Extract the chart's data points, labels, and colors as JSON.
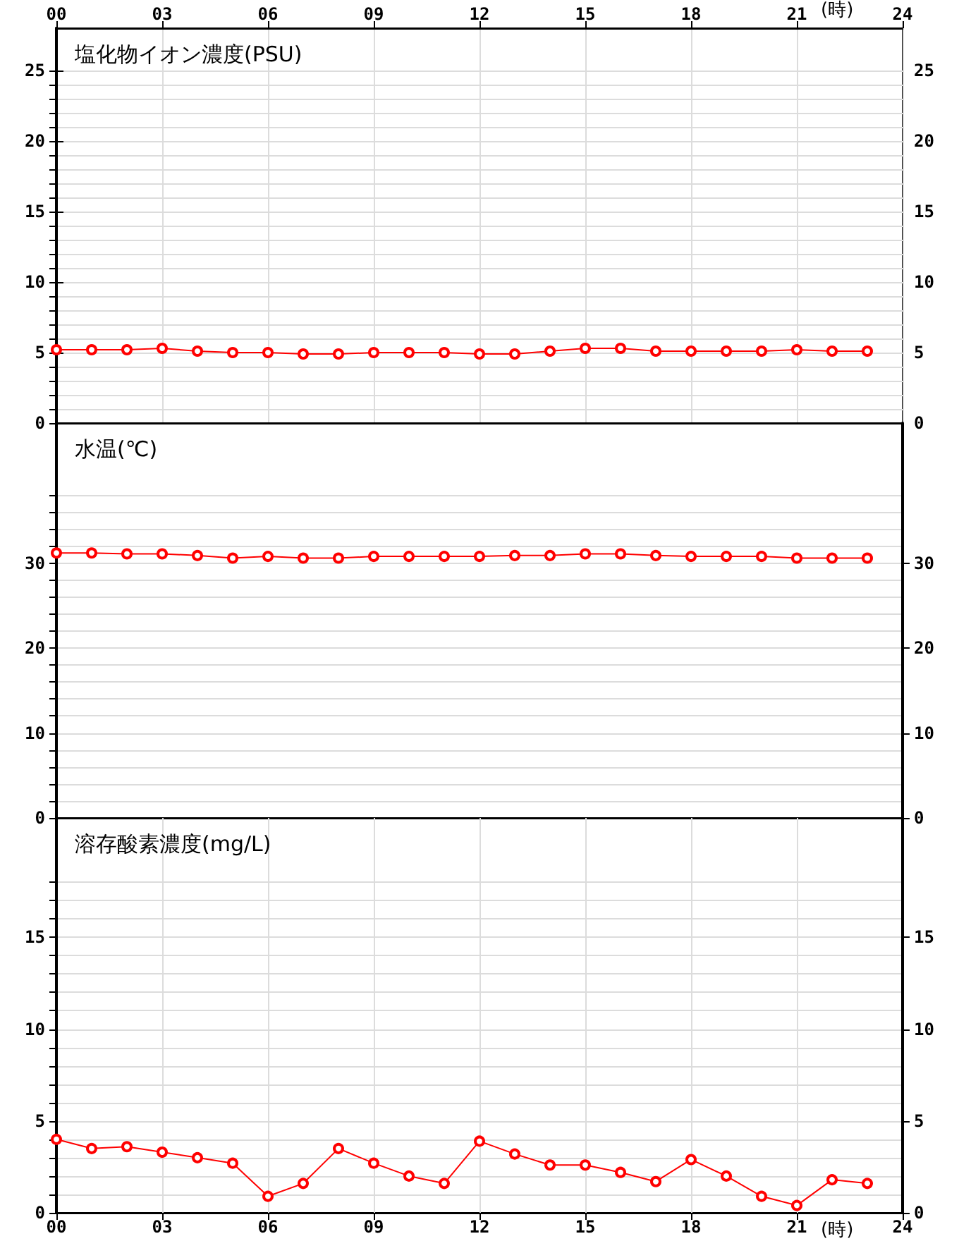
{
  "chart_data": [
    {
      "type": "line",
      "title": "塩化物イオン濃度(PSU)",
      "x": [
        0,
        1,
        2,
        3,
        4,
        5,
        6,
        7,
        8,
        9,
        10,
        11,
        12,
        13,
        14,
        15,
        16,
        17,
        18,
        19,
        20,
        21,
        22,
        23
      ],
      "series": [
        {
          "color": "#ff0000",
          "values": [
            5.2,
            5.2,
            5.2,
            5.3,
            5.1,
            5.0,
            5.0,
            4.9,
            4.9,
            5.0,
            5.0,
            5.0,
            4.9,
            4.9,
            5.1,
            5.3,
            5.3,
            5.1,
            5.1,
            5.1,
            5.1,
            5.2,
            5.1,
            5.1
          ]
        }
      ],
      "xlim": [
        0,
        24
      ],
      "x2lim": [
        0,
        24
      ],
      "x2ticks": [
        {
          "value": 0,
          "label": "00"
        },
        {
          "value": 3,
          "label": "03"
        },
        {
          "value": 6,
          "label": "06"
        },
        {
          "value": 9,
          "label": "09"
        },
        12,
        15,
        18,
        21,
        24
      ],
      "x2label": "(時)",
      "ylim": [
        0,
        28
      ],
      "yticks": [
        0,
        {
          "value": 1,
          "label": null
        },
        {
          "value": 2,
          "label": null
        },
        {
          "value": 3,
          "label": null
        },
        {
          "value": 4,
          "label": null
        },
        5,
        {
          "value": 6,
          "label": null
        },
        {
          "value": 7,
          "label": null
        },
        {
          "value": 8,
          "label": null
        },
        {
          "value": 9,
          "label": null
        },
        10,
        {
          "value": 11,
          "label": null
        },
        {
          "value": 12,
          "label": null
        },
        {
          "value": 13,
          "label": null
        },
        {
          "value": 14,
          "label": null
        },
        15,
        {
          "value": 16,
          "label": null
        },
        {
          "value": 17,
          "label": null
        },
        {
          "value": 18,
          "label": null
        },
        {
          "value": 19,
          "label": null
        },
        20,
        {
          "value": 21,
          "label": null
        },
        {
          "value": 22,
          "label": null
        },
        {
          "value": 23,
          "label": null
        },
        {
          "value": 24,
          "label": null
        },
        25
      ],
      "y2lim": [
        0,
        28
      ],
      "y2ticks": [
        0,
        5,
        10,
        15,
        20,
        25
      ],
      "grid": true,
      "marker": "circle",
      "line_style": "solid"
    },
    {
      "type": "line",
      "title": "水温(℃)",
      "x": [
        0,
        1,
        2,
        3,
        4,
        5,
        6,
        7,
        8,
        9,
        10,
        11,
        12,
        13,
        14,
        15,
        16,
        17,
        18,
        19,
        20,
        21,
        22,
        23
      ],
      "series": [
        {
          "color": "#ff0000",
          "values": [
            31.2,
            31.2,
            31.1,
            31.1,
            30.9,
            30.6,
            30.8,
            30.6,
            30.6,
            30.8,
            30.8,
            30.8,
            30.8,
            30.9,
            30.9,
            31.1,
            31.1,
            30.9,
            30.8,
            30.8,
            30.8,
            30.6,
            30.6,
            30.6
          ]
        }
      ],
      "xlim": [
        0,
        24
      ],
      "tick_labels": "y",
      "ylim": [
        0,
        46.5
      ],
      "yticks": [
        0,
        {
          "value": 2,
          "label": null
        },
        {
          "value": 4,
          "label": null
        },
        {
          "value": 6,
          "label": null
        },
        {
          "value": 8,
          "label": null
        },
        10,
        {
          "value": 12,
          "label": null
        },
        {
          "value": 14,
          "label": null
        },
        {
          "value": 16,
          "label": null
        },
        {
          "value": 18,
          "label": null
        },
        20,
        {
          "value": 22,
          "label": null
        },
        {
          "value": 24,
          "label": null
        },
        {
          "value": 26,
          "label": null
        },
        {
          "value": 28,
          "label": null
        },
        30,
        {
          "value": 32,
          "label": null
        },
        {
          "value": 34,
          "label": null
        },
        {
          "value": 36,
          "label": null
        },
        {
          "value": 38,
          "label": null
        }
      ],
      "y2lim": [
        0,
        46.5
      ],
      "y2ticks": [
        0,
        10,
        20,
        30
      ],
      "grid": true,
      "marker": "circle",
      "line_style": "solid"
    },
    {
      "type": "line",
      "title": "溶存酸素濃度(mg/L)",
      "x": [
        0,
        1,
        2,
        3,
        4,
        5,
        6,
        7,
        8,
        9,
        10,
        11,
        12,
        13,
        14,
        15,
        16,
        17,
        18,
        19,
        20,
        21,
        22,
        23
      ],
      "series": [
        {
          "color": "#ff0000",
          "values": [
            4.0,
            3.5,
            3.6,
            3.3,
            3.0,
            2.7,
            0.9,
            1.6,
            3.5,
            2.7,
            2.0,
            1.6,
            3.9,
            3.2,
            2.6,
            2.6,
            2.2,
            1.7,
            2.9,
            2.0,
            0.9,
            0.4,
            1.8,
            1.6
          ]
        }
      ],
      "xlim": [
        0,
        24
      ],
      "xticks": [
        {
          "value": 0,
          "label": "00"
        },
        {
          "value": 3,
          "label": "03"
        },
        {
          "value": 6,
          "label": "06"
        },
        {
          "value": 9,
          "label": "09"
        },
        12,
        15,
        18,
        21,
        24
      ],
      "xlabel": "(時)",
      "ylim": [
        0,
        21.5
      ],
      "yticks": [
        0,
        {
          "value": 1,
          "label": null
        },
        {
          "value": 2,
          "label": null
        },
        {
          "value": 3,
          "label": null
        },
        {
          "value": 4,
          "label": null
        },
        5,
        {
          "value": 6,
          "label": null
        },
        {
          "value": 7,
          "label": null
        },
        {
          "value": 8,
          "label": null
        },
        {
          "value": 9,
          "label": null
        },
        10,
        {
          "value": 11,
          "label": null
        },
        {
          "value": 12,
          "label": null
        },
        {
          "value": 13,
          "label": null
        },
        {
          "value": 14,
          "label": null
        },
        15,
        {
          "value": 16,
          "label": null
        },
        {
          "value": 17,
          "label": null
        },
        {
          "value": 18,
          "label": null
        }
      ],
      "y2lim": [
        0,
        21.5
      ],
      "y2ticks": [
        0,
        5,
        10,
        15
      ],
      "grid": true,
      "marker": "circle",
      "line_style": "solid"
    }
  ]
}
